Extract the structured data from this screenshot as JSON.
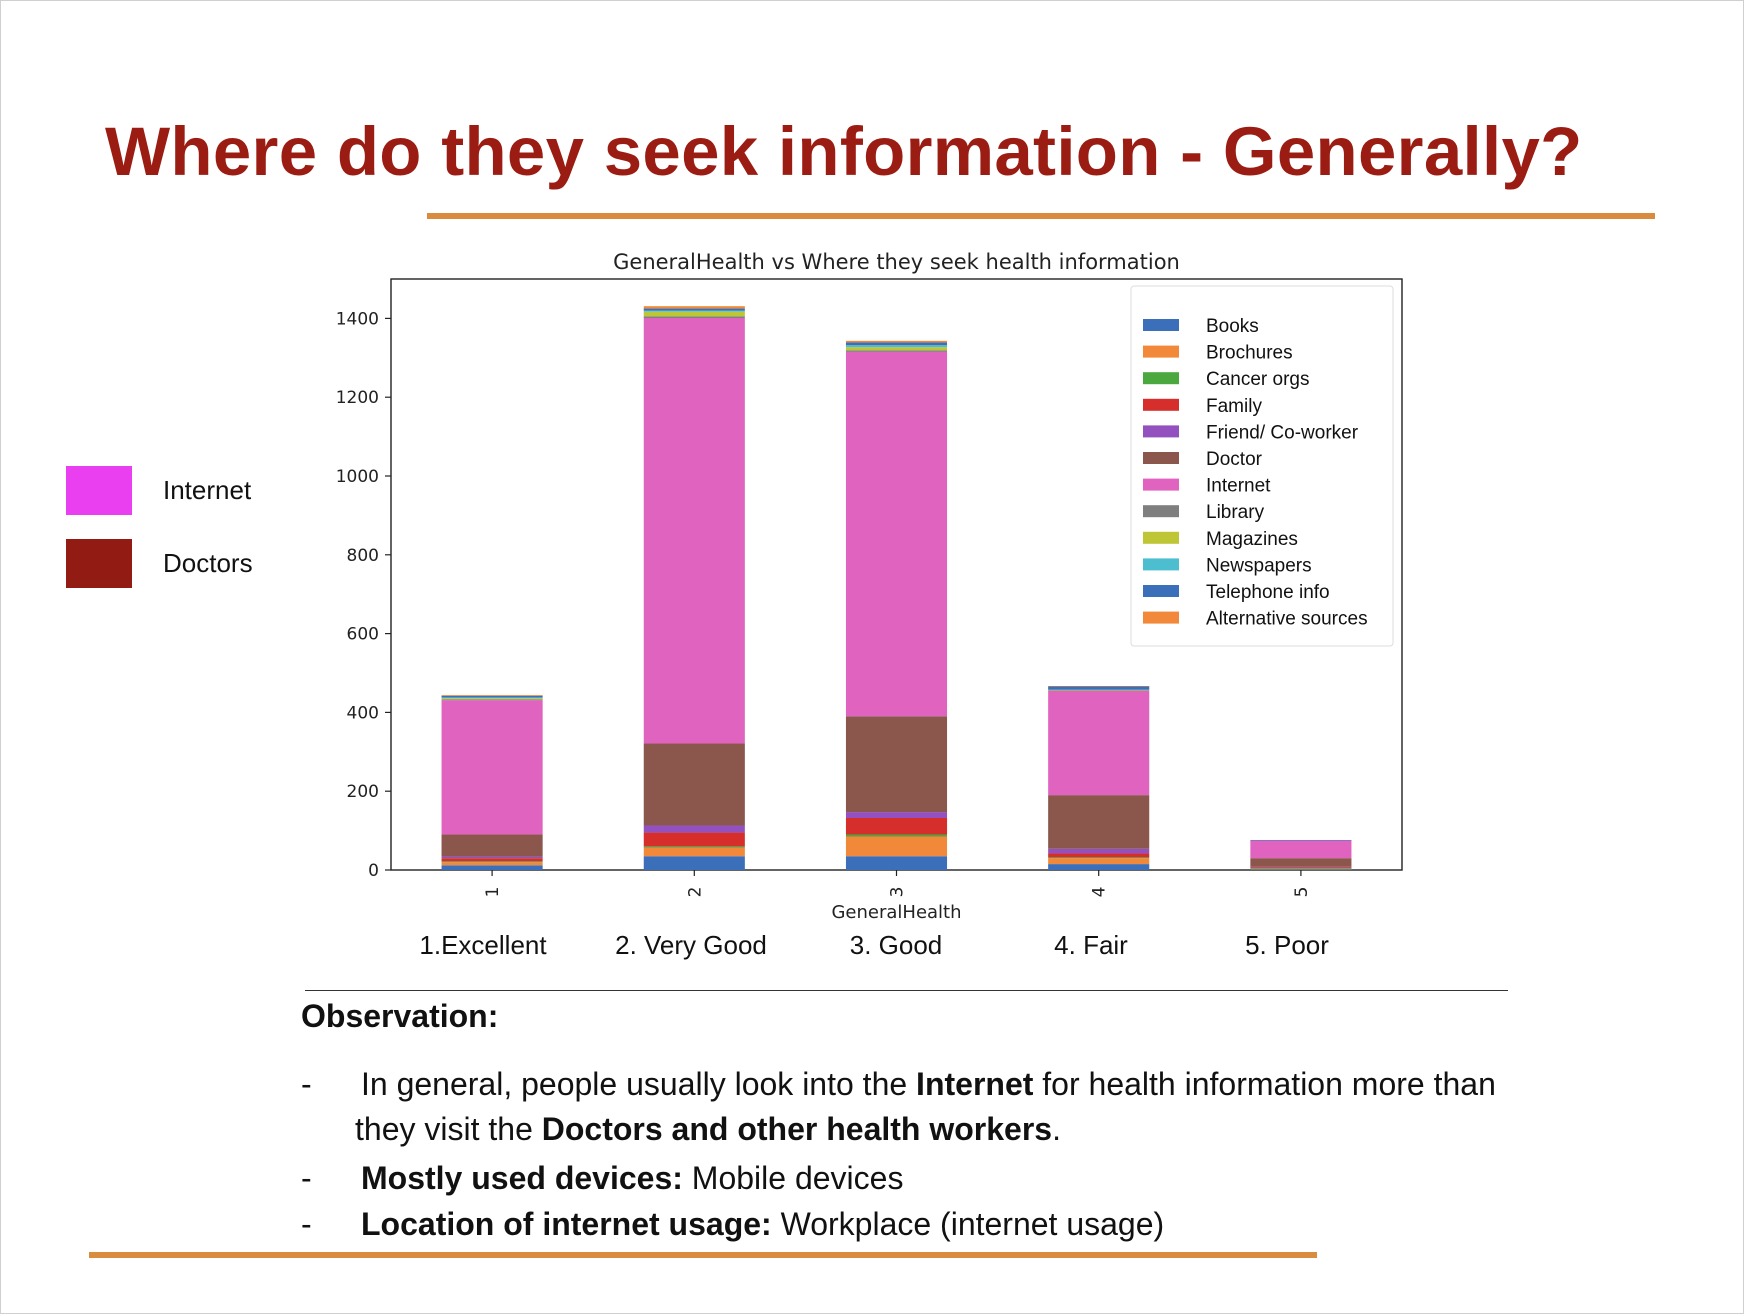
{
  "slide": {
    "title": "Where do they seek information - Generally?",
    "title_color": "#9b1c12",
    "rule_color": "#d98c3d"
  },
  "side_legend": [
    {
      "label": "Internet",
      "color": "#e93ff0"
    },
    {
      "label": "Doctors",
      "color": "#921c14"
    }
  ],
  "chart_data": {
    "type": "bar",
    "stacked": true,
    "title": "GeneralHealth vs Where they seek health information",
    "xlabel": "GeneralHealth",
    "ylabel": "",
    "ylim": [
      0,
      1500
    ],
    "yticks": [
      0,
      200,
      400,
      600,
      800,
      1000,
      1200,
      1400
    ],
    "categories": [
      "1",
      "2",
      "3",
      "4",
      "5"
    ],
    "legend_position": "top-right",
    "series": [
      {
        "name": "Books",
        "color": "#3b6fba",
        "values": [
          12,
          35,
          35,
          15,
          2
        ]
      },
      {
        "name": "Brochures",
        "color": "#f2883a",
        "values": [
          8,
          22,
          50,
          15,
          2
        ]
      },
      {
        "name": "Cancer orgs",
        "color": "#4aa83f",
        "values": [
          2,
          3,
          5,
          2,
          1
        ]
      },
      {
        "name": "Family",
        "color": "#d62f2b",
        "values": [
          8,
          35,
          42,
          10,
          2
        ]
      },
      {
        "name": "Friend/ Co-worker",
        "color": "#9350bf",
        "values": [
          4,
          18,
          15,
          12,
          1
        ]
      },
      {
        "name": "Doctor",
        "color": "#8b564b",
        "values": [
          56,
          208,
          243,
          136,
          22
        ]
      },
      {
        "name": "Internet",
        "color": "#e063bf",
        "values": [
          341,
          1080,
          925,
          265,
          45
        ]
      },
      {
        "name": "Library",
        "color": "#7f7f7f",
        "values": [
          2,
          4,
          4,
          1,
          0
        ]
      },
      {
        "name": "Magazines",
        "color": "#bec636",
        "values": [
          3,
          12,
          8,
          1,
          0
        ]
      },
      {
        "name": "Newspapers",
        "color": "#4cbed0",
        "values": [
          2,
          3,
          5,
          1,
          0
        ]
      },
      {
        "name": "Telephone info",
        "color": "#3b6fba",
        "values": [
          4,
          5,
          7,
          8,
          1
        ]
      },
      {
        "name": "Alternative sources",
        "color": "#f2883a",
        "values": [
          2,
          6,
          4,
          1,
          0
        ]
      }
    ]
  },
  "category_labels": [
    "1.Excellent",
    "2. Very Good",
    "3. Good",
    "4. Fair",
    "5. Poor"
  ],
  "observation": {
    "heading": "Observation:",
    "bullet_marker": "-",
    "bullet1": {
      "a": "In general, people usually look into the ",
      "b": "Internet",
      "c": " for health information more than",
      "d": "they visit the ",
      "e": "Doctors and other health workers",
      "f": "."
    },
    "bullet2": {
      "bold": "Mostly used devices:",
      "rest": " Mobile devices"
    },
    "bullet3": {
      "bold": "Location of internet usage:",
      "rest": " Workplace (internet usage)"
    }
  }
}
